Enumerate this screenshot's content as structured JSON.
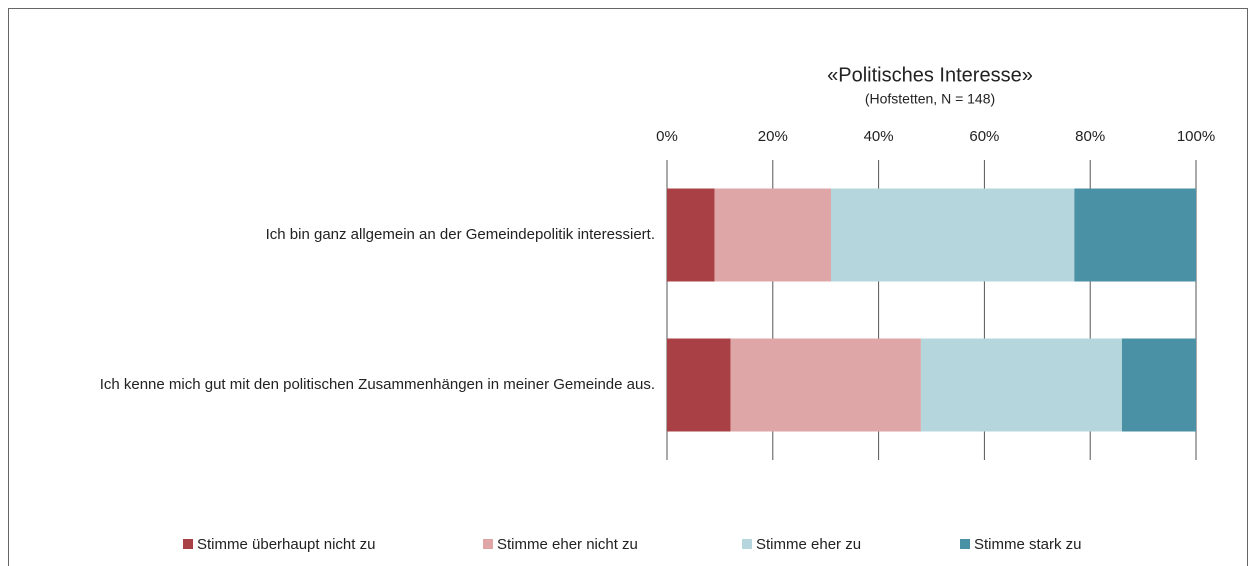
{
  "chart_data": {
    "type": "stacked-barh",
    "title": "«Politisches Interesse»",
    "subtitle": "(Hofstetten, N = 148)",
    "categories": [
      "Ich bin ganz allgemein an der Gemeindepolitik interessiert.",
      "Ich kenne mich gut mit den politischen Zusammenhängen in meiner Gemeinde aus."
    ],
    "series": [
      {
        "name": "Stimme überhaupt nicht zu",
        "color": "#a84045",
        "values": [
          9,
          12
        ]
      },
      {
        "name": "Stimme eher nicht zu",
        "color": "#dfa6a7",
        "values": [
          22,
          36
        ]
      },
      {
        "name": "Stimme eher zu",
        "color": "#b5d6dd",
        "values": [
          46,
          38
        ]
      },
      {
        "name": "Stimme stark zu",
        "color": "#4a91a5",
        "values": [
          23,
          14
        ]
      }
    ],
    "xlim": [
      0,
      100
    ],
    "xticks": [
      {
        "value": 0,
        "label": "0%"
      },
      {
        "value": 20,
        "label": "20%"
      },
      {
        "value": 40,
        "label": "40%"
      },
      {
        "value": 60,
        "label": "60%"
      },
      {
        "value": 80,
        "label": "80%"
      },
      {
        "value": 100,
        "label": "100%"
      }
    ],
    "grid": true,
    "legend": "bottom"
  }
}
